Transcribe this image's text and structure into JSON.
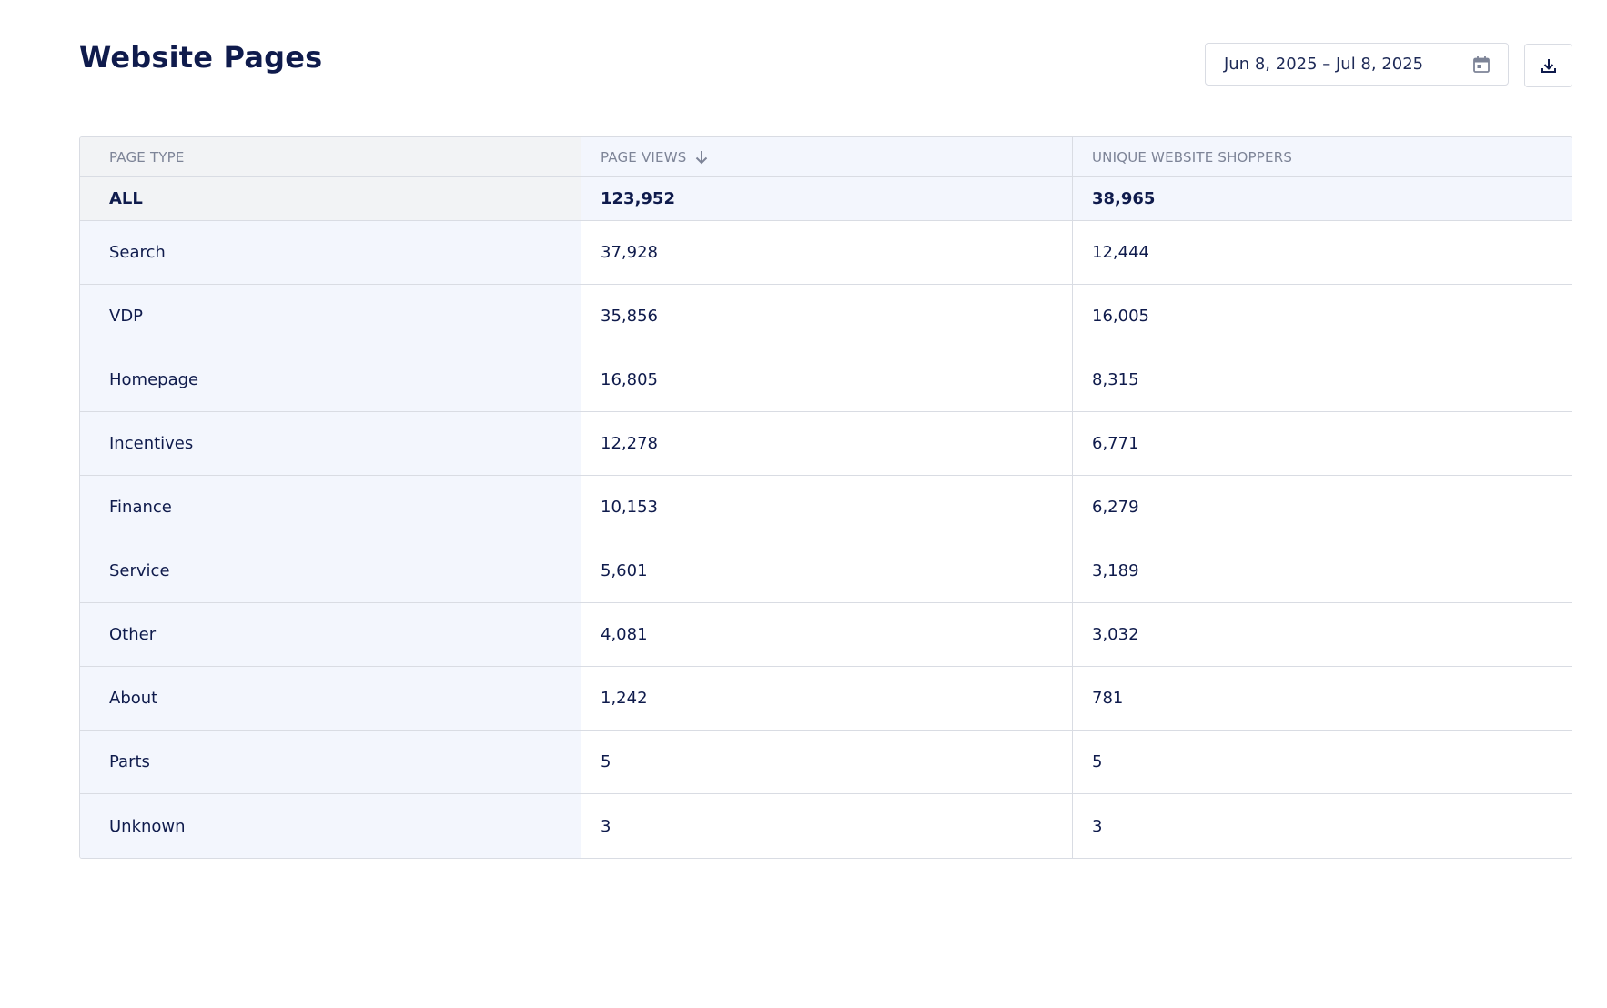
{
  "header": {
    "title": "Website Pages",
    "date_range": "Jun 8, 2025 – Jul 8, 2025"
  },
  "icons": {
    "calendar": "calendar-icon",
    "download": "download-icon",
    "sort": "arrow-down-icon"
  },
  "table": {
    "columns": [
      "PAGE TYPE",
      "PAGE VIEWS",
      "UNIQUE WEBSITE SHOPPERS"
    ],
    "sorted_by": "PAGE VIEWS",
    "total": {
      "page_type": "ALL",
      "page_views": "123,952",
      "unique_shoppers": "38,965"
    },
    "rows": [
      {
        "page_type": "Search",
        "page_views": "37,928",
        "unique_shoppers": "12,444"
      },
      {
        "page_type": "VDP",
        "page_views": "35,856",
        "unique_shoppers": "16,005"
      },
      {
        "page_type": "Homepage",
        "page_views": "16,805",
        "unique_shoppers": "8,315"
      },
      {
        "page_type": "Incentives",
        "page_views": "12,278",
        "unique_shoppers": "6,771"
      },
      {
        "page_type": "Finance",
        "page_views": "10,153",
        "unique_shoppers": "6,279"
      },
      {
        "page_type": "Service",
        "page_views": "5,601",
        "unique_shoppers": "3,189"
      },
      {
        "page_type": "Other",
        "page_views": "4,081",
        "unique_shoppers": "3,032"
      },
      {
        "page_type": "About",
        "page_views": "1,242",
        "unique_shoppers": "781"
      },
      {
        "page_type": "Parts",
        "page_views": "5",
        "unique_shoppers": "5"
      },
      {
        "page_type": "Unknown",
        "page_views": "3",
        "unique_shoppers": "3"
      }
    ]
  },
  "colors": {
    "title": "#0f1b4c",
    "text": "#0f1b4c",
    "header_text": "#7d8497",
    "border": "#d9dce3",
    "first_col_bg": "#f3f6fd",
    "total_first_bg": "#f2f3f5"
  }
}
